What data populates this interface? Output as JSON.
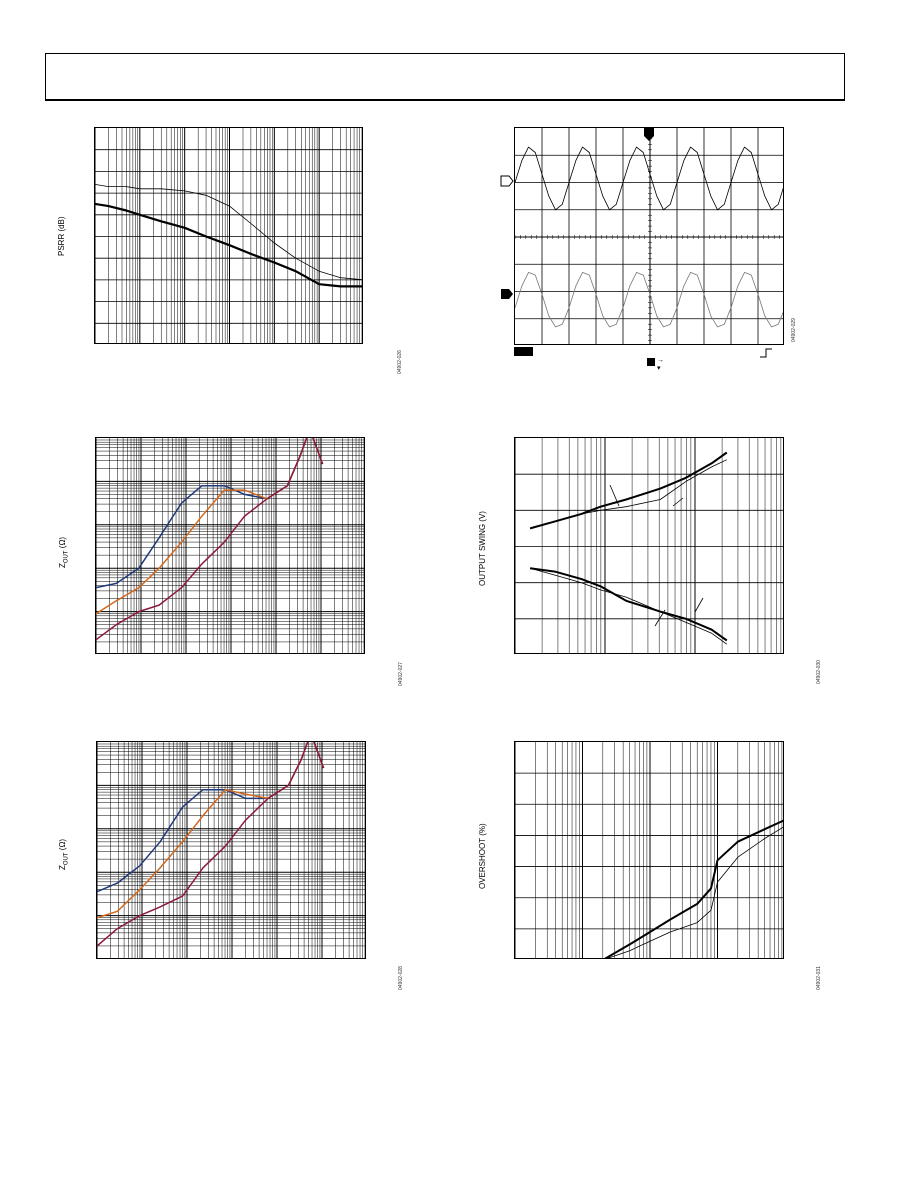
{
  "page": {
    "header_text": ""
  },
  "figures": {
    "psrr": {
      "ylabel": "PSRR (dB)",
      "figcode": "04902-026",
      "chart_data": {
        "type": "line",
        "xscale": "log",
        "title": "",
        "xlabel": "",
        "ylabel": "PSRR (dB)",
        "x_decades": 6,
        "y_divisions": 10,
        "ylim": [
          0,
          10
        ],
        "series": [
          {
            "x": [
              1,
              2,
              5,
              10,
              30,
              100,
              300,
              1000,
              3000,
              10000,
              30000,
              100000,
              300000,
              1000000
            ],
            "y": [
              7.4,
              7.3,
              7.3,
              7.2,
              7.2,
              7.1,
              6.9,
              6.4,
              5.6,
              4.7,
              4.0,
              3.4,
              3.1,
              3.0
            ]
          },
          {
            "x": [
              1,
              2,
              5,
              10,
              30,
              100,
              300,
              1000,
              3000,
              10000,
              30000,
              100000,
              300000,
              1000000
            ],
            "y": [
              6.5,
              6.4,
              6.2,
              6.0,
              5.7,
              5.4,
              5.0,
              4.6,
              4.2,
              3.8,
              3.4,
              2.8,
              2.7,
              2.7
            ]
          }
        ]
      }
    },
    "scope": {
      "figcode": "04902-029",
      "chart_data": {
        "type": "line",
        "title": "",
        "xlabel": "",
        "ylabel": "",
        "x_divisions": 10,
        "y_divisions": 8,
        "xlim": [
          0,
          10
        ],
        "ylim": [
          0,
          8
        ],
        "series": [
          {
            "x": [
              0,
              0.25,
              0.5,
              0.75,
              1,
              1.25,
              1.5,
              1.75,
              2,
              2.25,
              2.5,
              2.75,
              3,
              3.25,
              3.5,
              3.75,
              4,
              4.25,
              4.5,
              4.75,
              5,
              5.25,
              5.5,
              5.75,
              6,
              6.25,
              6.5,
              6.75,
              7,
              7.25,
              7.5,
              7.75,
              8,
              8.25,
              8.5,
              8.75,
              9,
              9.25,
              9.5,
              9.75,
              10
            ],
            "y": [
              6.0,
              6.8,
              7.3,
              7.1,
              6.3,
              5.5,
              5.0,
              5.2,
              6.0,
              6.8,
              7.3,
              7.1,
              6.3,
              5.5,
              5.0,
              5.2,
              6.0,
              6.8,
              7.3,
              7.1,
              6.3,
              5.5,
              5.0,
              5.2,
              6.0,
              6.8,
              7.3,
              7.1,
              6.3,
              5.5,
              5.0,
              5.2,
              6.0,
              6.8,
              7.3,
              7.1,
              6.3,
              5.5,
              5.0,
              5.2,
              6.0
            ]
          },
          {
            "x": [
              0,
              0.25,
              0.5,
              0.75,
              1,
              1.25,
              1.5,
              1.75,
              2,
              2.25,
              2.5,
              2.75,
              3,
              3.25,
              3.5,
              3.75,
              4,
              4.25,
              4.5,
              4.75,
              5,
              5.25,
              5.5,
              5.75,
              6,
              6.25,
              6.5,
              6.75,
              7,
              7.25,
              7.5,
              7.75,
              8,
              8.25,
              8.5,
              8.75,
              9,
              9.25,
              9.5,
              9.75,
              10
            ],
            "y": [
              1.4,
              2.2,
              2.7,
              2.6,
              1.9,
              1.1,
              0.7,
              0.8,
              1.4,
              2.2,
              2.7,
              2.6,
              1.9,
              1.1,
              0.7,
              0.8,
              1.4,
              2.2,
              2.7,
              2.6,
              1.9,
              1.1,
              0.7,
              0.8,
              1.4,
              2.2,
              2.7,
              2.6,
              1.9,
              1.1,
              0.7,
              0.8,
              1.4,
              2.2,
              2.7,
              2.6,
              1.9,
              1.1,
              0.7,
              0.8,
              1.4
            ]
          }
        ]
      },
      "markers": {
        "trigger": "T",
        "ch1": "1",
        "ch2": "2",
        "trig_arrows": "→ ▾"
      }
    },
    "zout1": {
      "ylabel_main": "Z",
      "ylabel_sub": "OUT",
      "ylabel_unit": " (Ω)",
      "figcode": "04902-027",
      "chart_data": {
        "type": "line",
        "xscale": "log",
        "yscale": "log",
        "title": "",
        "xlabel": "",
        "ylabel": "ZOUT (Ω)",
        "x_decades": 6,
        "y_decades": 5,
        "colors": [
          "#1f3a7a",
          "#d2691e",
          "#8b1a3c"
        ],
        "series": [
          {
            "x": [
              1,
              3,
              10,
              30,
              100,
              300,
              1000,
              3000,
              10000,
              30000,
              60000,
              100000,
              200000
            ],
            "y": [
              0.55,
              0.65,
              1.0,
              1.7,
              2.5,
              2.9,
              2.9,
              2.7,
              2.6,
              2.9,
              3.6,
              4.2,
              3.4
            ]
          },
          {
            "x": [
              1,
              3,
              10,
              30,
              100,
              300,
              1000,
              3000,
              10000,
              30000,
              60000,
              100000,
              200000
            ],
            "y": [
              -0.05,
              0.25,
              0.55,
              1.0,
              1.6,
              2.2,
              2.8,
              2.8,
              2.6,
              2.9,
              3.6,
              4.2,
              3.4
            ]
          },
          {
            "x": [
              1,
              3,
              10,
              30,
              100,
              300,
              1000,
              3000,
              10000,
              30000,
              60000,
              100000,
              200000
            ],
            "y": [
              -0.65,
              -0.3,
              0.0,
              0.15,
              0.55,
              1.1,
              1.6,
              2.2,
              2.6,
              2.9,
              3.6,
              4.2,
              3.4
            ]
          }
        ]
      }
    },
    "swing": {
      "ylabel": "OUTPUT SWING (V)",
      "figcode": "04902-030",
      "chart_data": {
        "type": "line",
        "xscale": "log",
        "title": "",
        "xlabel": "",
        "ylabel": "OUTPUT SWING (V)",
        "x_decades": 3,
        "y_divisions": 6,
        "ylim": [
          0,
          6
        ],
        "series": [
          {
            "x": [
              1.5,
              3,
              6,
              10,
              20,
              50,
              100,
              200,
              300
            ],
            "y": [
              3.5,
              3.7,
              3.9,
              4.1,
              4.3,
              4.6,
              4.9,
              5.3,
              5.6
            ]
          },
          {
            "x": [
              1.5,
              3,
              6,
              10,
              20,
              50,
              100,
              200,
              300
            ],
            "y": [
              3.5,
              3.7,
              3.9,
              4.0,
              4.1,
              4.3,
              4.8,
              5.2,
              5.4
            ]
          },
          {
            "x": [
              1.5,
              3,
              6,
              10,
              20,
              50,
              100,
              200,
              300
            ],
            "y": [
              2.4,
              2.3,
              2.1,
              1.9,
              1.5,
              1.2,
              1.0,
              0.7,
              0.4
            ]
          },
          {
            "x": [
              1.5,
              3,
              6,
              10,
              20,
              50,
              100,
              200,
              300
            ],
            "y": [
              2.4,
              2.2,
              2.0,
              1.8,
              1.6,
              1.2,
              0.9,
              0.6,
              0.3
            ]
          }
        ]
      }
    },
    "zout2": {
      "ylabel_main": "Z",
      "ylabel_sub": "OUT",
      "ylabel_unit": " (Ω)",
      "figcode": "04902-028",
      "chart_data": {
        "type": "line",
        "xscale": "log",
        "yscale": "log",
        "title": "",
        "xlabel": "",
        "ylabel": "ZOUT (Ω)",
        "x_decades": 6,
        "y_decades": 5,
        "colors": [
          "#1f3a7a",
          "#d2691e",
          "#8b1a3c"
        ],
        "series": [
          {
            "x": [
              1,
              3,
              10,
              30,
              100,
              300,
              1000,
              3000,
              10000,
              30000,
              60000,
              100000,
              200000
            ],
            "y": [
              0.55,
              0.75,
              1.15,
              1.7,
              2.5,
              2.9,
              2.9,
              2.7,
              2.7,
              3.0,
              3.6,
              4.2,
              3.4
            ]
          },
          {
            "x": [
              1,
              3,
              10,
              30,
              100,
              300,
              1000,
              3000,
              10000,
              30000,
              60000,
              100000,
              200000
            ],
            "y": [
              -0.05,
              0.1,
              0.6,
              1.1,
              1.7,
              2.3,
              2.9,
              2.8,
              2.7,
              3.0,
              3.6,
              4.2,
              3.4
            ]
          },
          {
            "x": [
              1,
              3,
              10,
              30,
              100,
              300,
              1000,
              3000,
              10000,
              30000,
              60000,
              100000,
              200000
            ],
            "y": [
              -0.7,
              -0.3,
              0.0,
              0.2,
              0.45,
              1.1,
              1.6,
              2.2,
              2.7,
              3.0,
              3.6,
              4.2,
              3.4
            ]
          }
        ]
      }
    },
    "overshoot": {
      "ylabel": "OVERSHOOT (%)",
      "figcode": "04902-031",
      "chart_data": {
        "type": "line",
        "xscale": "log",
        "title": "",
        "xlabel": "",
        "ylabel": "OVERSHOOT (%)",
        "x_decades": 3,
        "y_divisions": 7,
        "ylim": [
          0,
          7
        ],
        "series": [
          {
            "x": [
              20,
              50,
              100,
              200,
              500,
              800,
              1000,
              2000,
              5000,
              10000
            ],
            "y": [
              0,
              0.5,
              0.9,
              1.3,
              1.8,
              2.3,
              3.2,
              3.8,
              4.2,
              4.5
            ]
          },
          {
            "x": [
              20,
              50,
              100,
              200,
              500,
              800,
              1000,
              2000,
              5000,
              10000
            ],
            "y": [
              0,
              0.3,
              0.6,
              0.9,
              1.2,
              1.6,
              2.5,
              3.3,
              3.9,
              4.3
            ]
          }
        ]
      }
    }
  }
}
